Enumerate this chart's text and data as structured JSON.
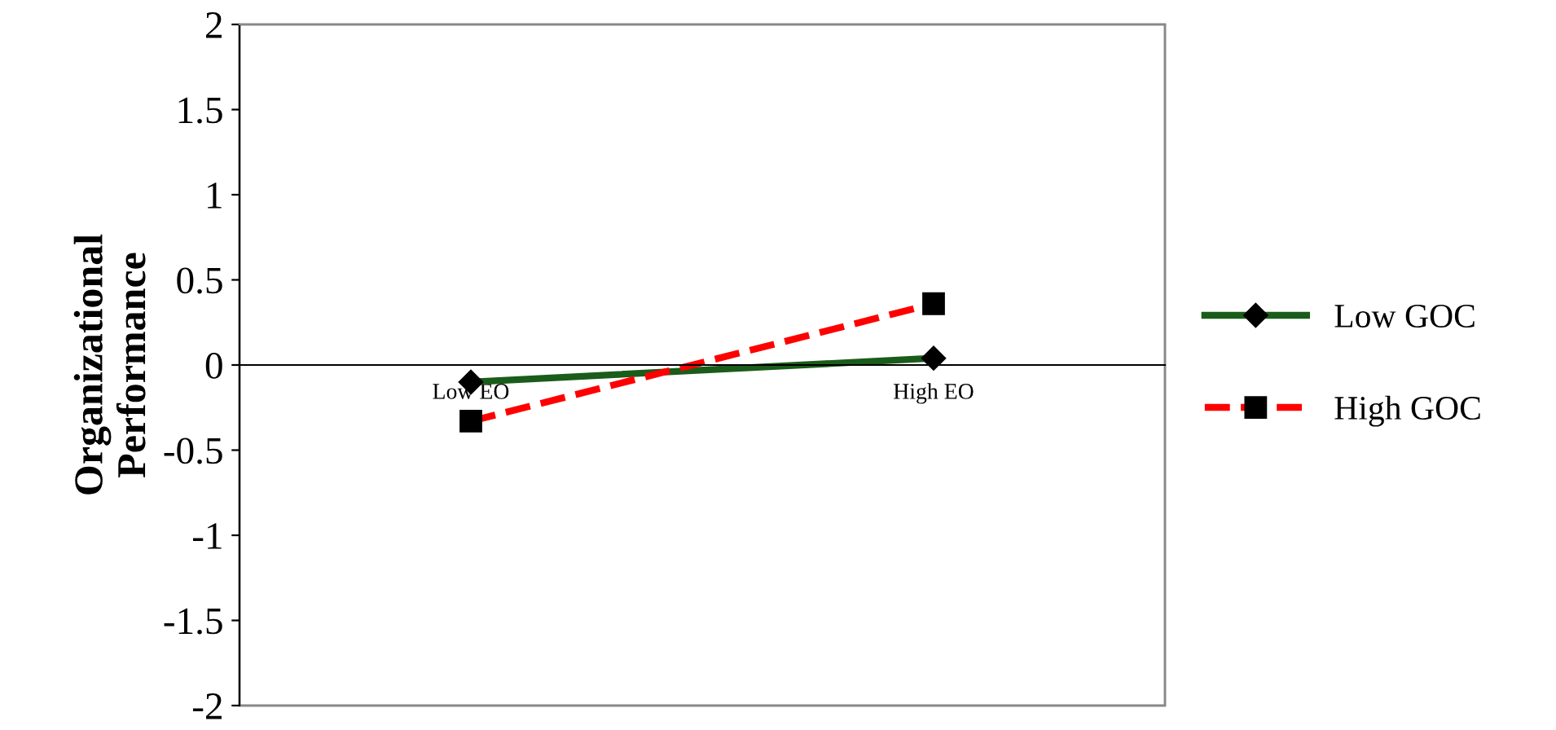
{
  "chart_data": {
    "type": "line",
    "ylabel": "Organizational\nPerformance",
    "categories": [
      "Low EO",
      "High EO"
    ],
    "series": [
      {
        "name": "Low GOC",
        "color": "#1a5c1a",
        "values": [
          -0.1,
          0.04
        ],
        "marker": "diamond",
        "line_style": "solid"
      },
      {
        "name": "High GOC",
        "color": "#ff0000",
        "values": [
          -0.33,
          0.36
        ],
        "marker": "square",
        "line_style": "dashed"
      }
    ],
    "ylim": [
      -2,
      2
    ],
    "yticks": [
      -2,
      -1.5,
      -1,
      -0.5,
      0,
      0.5,
      1,
      1.5,
      2
    ],
    "grid": false,
    "legend": "right"
  }
}
